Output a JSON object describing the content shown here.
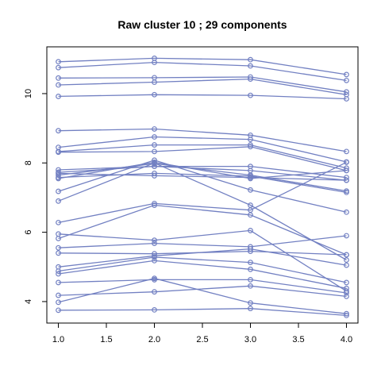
{
  "chart_data": {
    "type": "line",
    "title": "Raw cluster 10 ; 29 components",
    "xlabel": "",
    "ylabel": "",
    "x": [
      1,
      2,
      3,
      4
    ],
    "xticks": [
      "1.0",
      "1.5",
      "2.0",
      "2.5",
      "3.0",
      "3.5",
      "4.0"
    ],
    "yticks": [
      "4",
      "6",
      "8",
      "10"
    ],
    "xlim": [
      0.88,
      4.12
    ],
    "ylim": [
      3.38,
      11.35
    ],
    "grid": false,
    "legend": false,
    "marker": "open-circle",
    "line_color": "#7280c2",
    "series": [
      {
        "values": [
          10.92,
          11.02,
          10.98,
          10.55
        ]
      },
      {
        "values": [
          10.75,
          10.9,
          10.8,
          10.38
        ]
      },
      {
        "values": [
          10.45,
          10.46,
          10.48,
          10.05
        ]
      },
      {
        "values": [
          10.25,
          10.33,
          10.42,
          9.97
        ]
      },
      {
        "values": [
          9.92,
          9.97,
          9.95,
          9.85
        ]
      },
      {
        "values": [
          8.93,
          8.98,
          8.8,
          8.33
        ]
      },
      {
        "values": [
          8.45,
          8.75,
          8.68,
          8.03
        ]
      },
      {
        "values": [
          8.33,
          8.52,
          8.52,
          7.85
        ]
      },
      {
        "values": [
          8.31,
          8.33,
          8.47,
          7.78
        ]
      },
      {
        "values": [
          7.8,
          7.9,
          7.9,
          7.58
        ]
      },
      {
        "values": [
          7.73,
          7.9,
          7.78,
          7.5
        ]
      },
      {
        "values": [
          7.65,
          7.98,
          7.65,
          7.19
        ]
      },
      {
        "values": [
          7.58,
          7.7,
          7.62,
          7.15
        ]
      },
      {
        "values": [
          7.7,
          7.63,
          7.58,
          7.5
        ]
      },
      {
        "values": [
          7.55,
          8.02,
          7.55,
          7.78
        ]
      },
      {
        "values": [
          7.18,
          8.08,
          7.22,
          6.58
        ]
      },
      {
        "values": [
          6.9,
          8.0,
          6.78,
          5.2
        ]
      },
      {
        "values": [
          6.28,
          6.83,
          6.64,
          8.02
        ]
      },
      {
        "values": [
          5.82,
          6.78,
          6.5,
          5.35
        ]
      },
      {
        "values": [
          5.95,
          5.77,
          6.05,
          4.3
        ]
      },
      {
        "values": [
          5.55,
          5.68,
          5.58,
          5.9
        ]
      },
      {
        "values": [
          5.4,
          5.38,
          5.45,
          5.35
        ]
      },
      {
        "values": [
          5.0,
          5.32,
          5.52,
          5.05
        ]
      },
      {
        "values": [
          4.88,
          5.28,
          5.13,
          4.55
        ]
      },
      {
        "values": [
          4.8,
          5.18,
          4.93,
          4.38
        ]
      },
      {
        "values": [
          4.55,
          4.63,
          4.63,
          4.25
        ]
      },
      {
        "values": [
          4.18,
          4.28,
          4.45,
          4.15
        ]
      },
      {
        "values": [
          3.98,
          4.67,
          3.96,
          3.65
        ]
      },
      {
        "values": [
          3.75,
          3.76,
          3.8,
          3.6
        ]
      }
    ]
  }
}
